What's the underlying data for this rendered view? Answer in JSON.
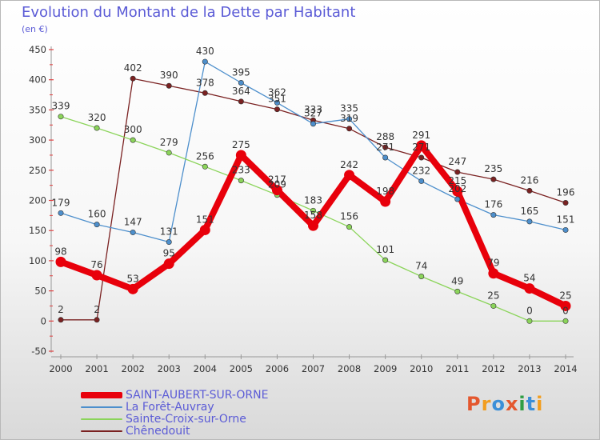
{
  "title": "Evolution du Montant de la Dette par Habitant",
  "subtitle": "(en €)",
  "logo": {
    "text": "Proxiti",
    "colors": [
      "#e4572e",
      "#f29e1f",
      "#3b8fd8",
      "#e4572e",
      "#2f9e44",
      "#3b8fd8",
      "#f29e1f"
    ]
  },
  "chart_data": {
    "type": "line",
    "title": "Evolution du Montant de la Dette par Habitant",
    "ylabel": "(en €)",
    "xlabel": "",
    "x": [
      "2000",
      "2001",
      "2002",
      "2003",
      "2004",
      "2005",
      "2006",
      "2007",
      "2008",
      "2009",
      "2010",
      "2011",
      "2012",
      "2013",
      "2014"
    ],
    "ylim": [
      -50,
      450
    ],
    "yticks": [
      -50,
      0,
      50,
      100,
      150,
      200,
      250,
      300,
      350,
      400,
      450
    ],
    "grid": false,
    "legend_position": "bottom-left",
    "series": [
      {
        "name": "SAINT-AUBERT-SUR-ORNE",
        "color": "#e8000b",
        "width": 8,
        "values": [
          98,
          76,
          53,
          95,
          151,
          275,
          217,
          158,
          242,
          198,
          291,
          215,
          79,
          54,
          25
        ],
        "labels": [
          "98",
          "76",
          "53",
          "95",
          "151",
          "275",
          "217",
          "158",
          "242",
          "198",
          "291",
          "215",
          "79",
          "54",
          "25"
        ]
      },
      {
        "name": "La Forêt-Auvray",
        "color": "#4d8fcc",
        "width": 1.3,
        "values": [
          179,
          160,
          147,
          131,
          430,
          395,
          362,
          327,
          335,
          271,
          232,
          202,
          176,
          165,
          151
        ],
        "labels": [
          "179",
          "160",
          "147",
          "131",
          "430",
          "395",
          "362",
          "327",
          "335",
          "271",
          "232",
          "202",
          "176",
          "165",
          "151"
        ]
      },
      {
        "name": "Sainte-Croix-sur-Orne",
        "color": "#8bd45a",
        "width": 1.3,
        "values": [
          339,
          320,
          300,
          279,
          256,
          233,
          209,
          183,
          156,
          101,
          74,
          49,
          25,
          0,
          0
        ],
        "labels": [
          "339",
          "320",
          "300",
          "279",
          "256",
          "233",
          "209",
          "183",
          "156",
          "101",
          "74",
          "49",
          "25",
          "0",
          "0"
        ]
      },
      {
        "name": "Chênedouit",
        "color": "#7a2121",
        "width": 1.3,
        "values": [
          2,
          2,
          402,
          390,
          378,
          364,
          351,
          333,
          319,
          288,
          271,
          247,
          235,
          216,
          196
        ],
        "labels": [
          "2",
          "2",
          "402",
          "390",
          "378",
          "364",
          "351",
          "333",
          "319",
          "288",
          "271",
          "247",
          "235",
          "216",
          "196"
        ]
      }
    ]
  }
}
